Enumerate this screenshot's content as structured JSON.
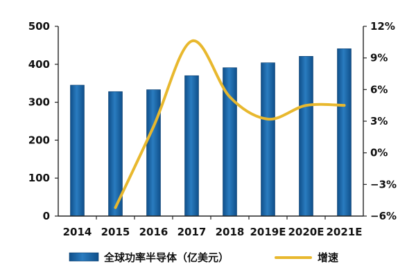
{
  "chart_data": {
    "type": "bar+line",
    "categories": [
      "2014",
      "2015",
      "2016",
      "2017",
      "2018",
      "2019E",
      "2020E",
      "2021E"
    ],
    "series": [
      {
        "name": "全球功率半导体（亿美元）",
        "type": "bar",
        "axis": "left",
        "color": "#1a66a8",
        "values": [
          345,
          328,
          333,
          370,
          391,
          404,
          421,
          441
        ]
      },
      {
        "name": "增速",
        "type": "line",
        "axis": "right",
        "color": "#e8b82e",
        "smooth": true,
        "values": [
          null,
          -5.2,
          2.5,
          10.6,
          5.3,
          3.2,
          4.5,
          4.5
        ]
      }
    ],
    "y_left": {
      "lim": [
        0,
        500
      ],
      "ticks": [
        0,
        100,
        200,
        300,
        400,
        500
      ],
      "tick_labels": [
        "0",
        "100",
        "200",
        "300",
        "400",
        "500"
      ]
    },
    "y_right": {
      "lim": [
        -6,
        12
      ],
      "ticks": [
        -6,
        -3,
        0,
        3,
        6,
        9,
        12
      ],
      "tick_labels": [
        "−6%",
        "−3%",
        "0%",
        "3%",
        "6%",
        "9%",
        "12%"
      ]
    },
    "legend": {
      "position": "bottom",
      "items": [
        "全球功率半导体（亿美元）",
        "增速"
      ]
    },
    "grid": false
  }
}
